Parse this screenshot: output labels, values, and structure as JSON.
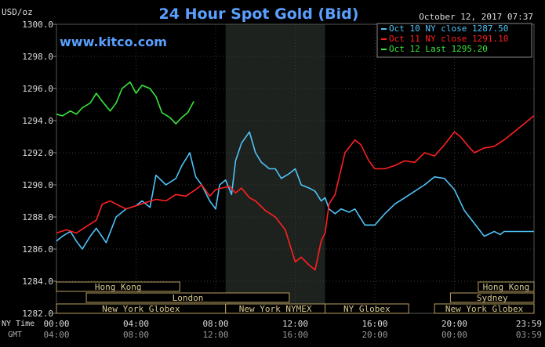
{
  "chart_data": {
    "type": "line",
    "title": "24 Hour Spot Gold (Bid)",
    "ylabel": "USD/oz",
    "date": "October 12, 2017 07:37",
    "website": "www.kitco.com",
    "ylim": [
      1282.0,
      1300.0
    ],
    "y_ticks": [
      "1282.0",
      "1284.0",
      "1286.0",
      "1288.0",
      "1290.0",
      "1292.0",
      "1294.0",
      "1296.0",
      "1298.0",
      "1300.0"
    ],
    "x_label_ny": "NY Time",
    "x_label_gmt": "GMT",
    "x_ticks_ny": [
      "00:00",
      "04:00",
      "08:00",
      "12:00",
      "16:00",
      "20:00",
      "23:59"
    ],
    "x_ticks_gmt": [
      "04:00",
      "08:00",
      "12:00",
      "16:00",
      "20:00",
      "00:00",
      "03:59"
    ],
    "grid": true,
    "shaded_session_hours": [
      8.5,
      13.5
    ],
    "legend_position": "top-right",
    "sessions": [
      {
        "name": "Hong Kong",
        "row": 0,
        "start": 0.0,
        "end": 6.2
      },
      {
        "name": "Hong Kong",
        "row": 0,
        "start": 21.2,
        "end": 24.0
      },
      {
        "name": "London",
        "row": 1,
        "start": 1.5,
        "end": 11.7
      },
      {
        "name": "Sydney",
        "row": 1,
        "start": 19.8,
        "end": 24.0
      },
      {
        "name": "New York Globex",
        "row": 2,
        "start": 0.0,
        "end": 8.5
      },
      {
        "name": "New York NYMEX",
        "row": 2,
        "start": 8.5,
        "end": 13.5
      },
      {
        "name": "NY Globex",
        "row": 2,
        "start": 13.5,
        "end": 17.7
      },
      {
        "name": "New York Globex",
        "row": 2,
        "start": 19.0,
        "end": 24.0
      }
    ],
    "series": [
      {
        "name": "Oct 10 NY close 1287.50",
        "color": "#4fc3f7",
        "x": [
          0,
          0.3,
          0.7,
          1.0,
          1.3,
          1.7,
          2.0,
          2.5,
          3.0,
          3.5,
          4.0,
          4.3,
          4.7,
          5.0,
          5.5,
          6.0,
          6.3,
          6.7,
          7.0,
          7.3,
          7.7,
          8.0,
          8.2,
          8.5,
          8.8,
          9.0,
          9.3,
          9.7,
          10.0,
          10.3,
          10.7,
          11.0,
          11.3,
          11.7,
          12.0,
          12.3,
          12.7,
          13.0,
          13.3,
          13.5,
          13.7,
          14.0,
          14.3,
          14.7,
          15.0,
          15.5,
          16.0,
          16.5,
          17.0,
          17.5,
          18.0,
          18.5,
          19.0,
          19.5,
          20.0,
          20.5,
          21.0,
          21.5,
          22.0,
          22.3,
          22.5,
          22.8,
          23.0,
          23.5,
          23.99
        ],
        "values": [
          1286.5,
          1286.8,
          1287.1,
          1286.5,
          1286.0,
          1286.8,
          1287.3,
          1286.4,
          1288.0,
          1288.5,
          1288.7,
          1289.0,
          1288.6,
          1290.6,
          1290.0,
          1290.4,
          1291.2,
          1292.0,
          1290.5,
          1290.0,
          1289.0,
          1288.5,
          1290.0,
          1290.3,
          1289.4,
          1291.5,
          1292.6,
          1293.3,
          1292.0,
          1291.4,
          1291.0,
          1291.0,
          1290.4,
          1290.7,
          1291.0,
          1290.0,
          1289.8,
          1289.6,
          1289.0,
          1289.2,
          1288.5,
          1288.2,
          1288.5,
          1288.3,
          1288.5,
          1287.5,
          1287.5,
          1288.2,
          1288.8,
          1289.2,
          1289.6,
          1290.0,
          1290.5,
          1290.4,
          1289.7,
          1288.4,
          1287.6,
          1286.8,
          1287.1,
          1286.9,
          1287.1,
          1287.1,
          1287.1,
          1287.1,
          1287.1
        ]
      },
      {
        "name": "Oct 11 NY close 1291.10",
        "color": "#ff2020",
        "x": [
          0,
          0.5,
          1.0,
          1.5,
          2.0,
          2.3,
          2.7,
          3.0,
          3.5,
          4.0,
          4.5,
          5.0,
          5.5,
          6.0,
          6.5,
          7.0,
          7.3,
          7.7,
          8.0,
          8.3,
          8.7,
          9.0,
          9.3,
          9.7,
          10.0,
          10.5,
          11.0,
          11.5,
          12.0,
          12.3,
          12.7,
          13.0,
          13.3,
          13.5,
          13.7,
          14.0,
          14.5,
          15.0,
          15.3,
          15.7,
          16.0,
          16.5,
          17.0,
          17.5,
          18.0,
          18.5,
          19.0,
          19.5,
          20.0,
          20.3,
          20.7,
          21.0,
          21.5,
          22.0,
          22.5,
          23.0,
          23.5,
          23.99
        ],
        "values": [
          1287.0,
          1287.2,
          1287.0,
          1287.4,
          1287.8,
          1288.8,
          1289.0,
          1288.8,
          1288.5,
          1288.7,
          1288.9,
          1289.1,
          1289.0,
          1289.4,
          1289.3,
          1289.7,
          1290.0,
          1289.3,
          1289.7,
          1289.8,
          1289.9,
          1289.5,
          1289.8,
          1289.2,
          1289.0,
          1288.4,
          1288.0,
          1287.2,
          1285.2,
          1285.5,
          1285.0,
          1284.7,
          1286.5,
          1287.0,
          1288.8,
          1289.4,
          1292.0,
          1292.8,
          1292.5,
          1291.5,
          1291.0,
          1291.0,
          1291.2,
          1291.5,
          1291.4,
          1292.0,
          1291.8,
          1292.5,
          1293.3,
          1293.0,
          1292.4,
          1292.0,
          1292.3,
          1292.4,
          1292.8,
          1293.3,
          1293.8,
          1294.3
        ]
      },
      {
        "name": "Oct 12 Last 1295.20",
        "color": "#39e639",
        "x": [
          0,
          0.3,
          0.7,
          1.0,
          1.3,
          1.7,
          2.0,
          2.3,
          2.7,
          3.0,
          3.3,
          3.7,
          4.0,
          4.3,
          4.7,
          5.0,
          5.3,
          5.7,
          6.0,
          6.3,
          6.6,
          6.9
        ],
        "values": [
          1294.4,
          1294.3,
          1294.6,
          1294.4,
          1294.8,
          1295.1,
          1295.7,
          1295.2,
          1294.6,
          1295.1,
          1296.0,
          1296.4,
          1295.7,
          1296.2,
          1296.0,
          1295.5,
          1294.5,
          1294.2,
          1293.8,
          1294.2,
          1294.5,
          1295.2
        ]
      }
    ]
  }
}
